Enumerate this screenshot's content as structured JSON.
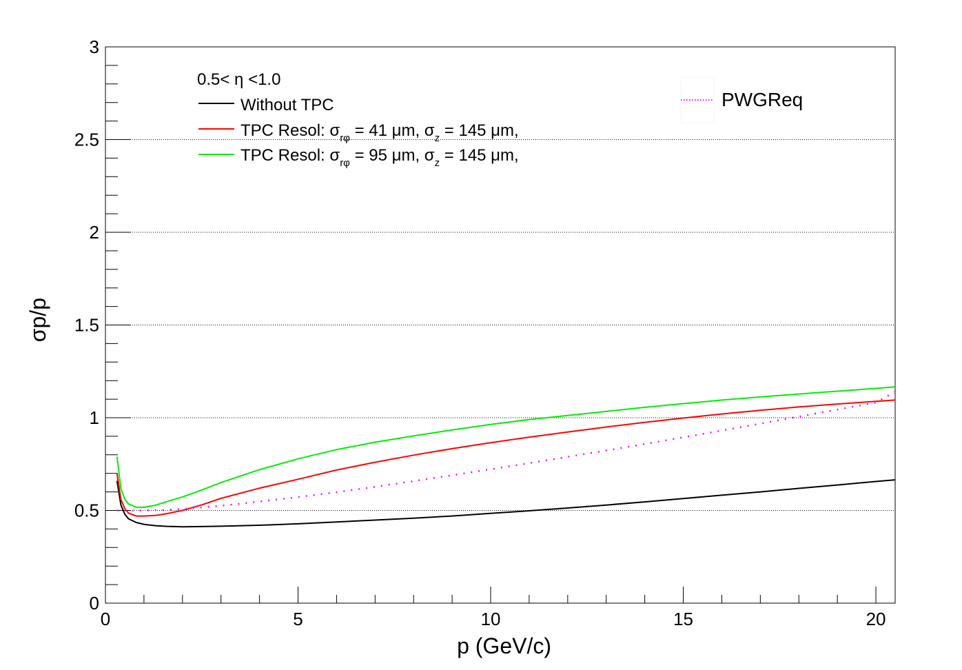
{
  "chart_data": {
    "type": "line",
    "xlabel": "p (GeV/c)",
    "ylabel": "σp/p",
    "xlim": [
      0,
      20.5
    ],
    "ylim": [
      0,
      3
    ],
    "x_ticks": [
      "0",
      "5",
      "10",
      "15",
      "20"
    ],
    "y_ticks": [
      "0",
      "0.5",
      "1",
      "1.5",
      "2",
      "2.5",
      "3"
    ],
    "grid": "horizontal dotted",
    "legend_placement": "top-left",
    "legend_header": "0.5< η <1.0",
    "series": [
      {
        "name": "Without TPC",
        "color": "#000000",
        "style": "solid",
        "x": [
          0.3,
          0.4,
          0.5,
          0.6,
          0.8,
          1.0,
          1.3,
          1.6,
          2.0,
          2.5,
          3.0,
          4.0,
          5.0,
          6.0,
          7.0,
          8.0,
          9.0,
          10.0,
          11.0,
          12.0,
          13.0,
          14.0,
          15.0,
          16.0,
          17.0,
          18.0,
          19.0,
          20.0,
          20.5
        ],
        "values": [
          0.66,
          0.53,
          0.48,
          0.455,
          0.435,
          0.425,
          0.418,
          0.414,
          0.412,
          0.413,
          0.415,
          0.42,
          0.428,
          0.438,
          0.448,
          0.458,
          0.47,
          0.484,
          0.498,
          0.513,
          0.529,
          0.546,
          0.564,
          0.582,
          0.6,
          0.619,
          0.637,
          0.656,
          0.665
        ]
      },
      {
        "name": "TPC Resol: σrφ = 41 μm, σz = 145 μm,",
        "color": "#ff0000",
        "style": "solid",
        "x": [
          0.3,
          0.4,
          0.5,
          0.6,
          0.8,
          1.0,
          1.3,
          1.6,
          2.0,
          2.5,
          3.0,
          4.0,
          5.0,
          6.0,
          7.0,
          8.0,
          9.0,
          10.0,
          11.0,
          12.0,
          13.0,
          14.0,
          15.0,
          16.0,
          17.0,
          18.0,
          19.0,
          20.0,
          20.5
        ],
        "values": [
          0.7,
          0.56,
          0.51,
          0.485,
          0.47,
          0.47,
          0.473,
          0.483,
          0.5,
          0.53,
          0.565,
          0.62,
          0.668,
          0.718,
          0.76,
          0.798,
          0.833,
          0.865,
          0.895,
          0.923,
          0.95,
          0.975,
          0.998,
          1.02,
          1.04,
          1.058,
          1.074,
          1.088,
          1.095
        ]
      },
      {
        "name": "TPC Resol: σrφ = 95 μm, σz = 145 μm,",
        "color": "#00ee00",
        "style": "solid",
        "x": [
          0.3,
          0.4,
          0.5,
          0.6,
          0.8,
          1.0,
          1.3,
          1.6,
          2.0,
          2.5,
          3.0,
          4.0,
          5.0,
          6.0,
          7.0,
          8.0,
          9.0,
          10.0,
          11.0,
          12.0,
          13.0,
          14.0,
          15.0,
          16.0,
          17.0,
          18.0,
          19.0,
          20.0,
          20.5
        ],
        "values": [
          0.79,
          0.62,
          0.56,
          0.535,
          0.518,
          0.517,
          0.528,
          0.548,
          0.573,
          0.61,
          0.65,
          0.72,
          0.778,
          0.828,
          0.868,
          0.902,
          0.934,
          0.964,
          0.99,
          1.012,
          1.034,
          1.056,
          1.076,
          1.095,
          1.112,
          1.128,
          1.143,
          1.158,
          1.166
        ]
      },
      {
        "name": "PWGReq",
        "color": "#ff00ff",
        "style": "dotted",
        "x": [
          0.3,
          0.5,
          0.8,
          1.0,
          1.5,
          2.0,
          3.0,
          4.0,
          5.0,
          6.0,
          7.0,
          8.0,
          9.0,
          10.0,
          11.0,
          12.0,
          13.0,
          14.0,
          15.0,
          16.0,
          17.0,
          18.0,
          19.0,
          20.0,
          20.5
        ],
        "values": [
          0.5,
          0.5,
          0.5,
          0.5,
          0.502,
          0.508,
          0.525,
          0.548,
          0.572,
          0.598,
          0.627,
          0.658,
          0.69,
          0.722,
          0.755,
          0.789,
          0.823,
          0.858,
          0.894,
          0.931,
          0.968,
          1.006,
          1.044,
          1.082,
          1.14
        ]
      }
    ],
    "legend_main": [
      {
        "label": "Without TPC",
        "color": "#000000",
        "style": "solid"
      },
      {
        "label_prefix": "TPC Resol: σ",
        "sub1": "rφ",
        "mid": " = 41 μm, σ",
        "sub2": "z",
        "suffix": " = 145 μm,",
        "color": "#ff0000",
        "style": "solid"
      },
      {
        "label_prefix": "TPC Resol: σ",
        "sub1": "rφ",
        "mid": " = 95 μm, σ",
        "sub2": "z",
        "suffix": " = 145 μm,",
        "color": "#00ee00",
        "style": "solid"
      }
    ],
    "legend_secondary": [
      {
        "label": "PWGReq",
        "color": "#ff00ff",
        "style": "dotted"
      }
    ]
  }
}
